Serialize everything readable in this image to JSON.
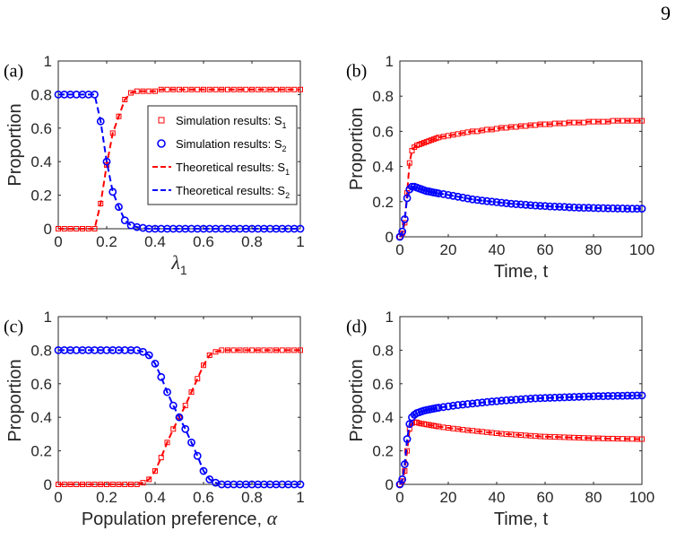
{
  "page_number": "9",
  "legend": [
    {
      "label": "Simulation results: S",
      "sub": "1"
    },
    {
      "label": "Simulation results: S",
      "sub": "2"
    },
    {
      "label": "Theoretical results: S",
      "sub": "1"
    },
    {
      "label": "Theoretical results: S",
      "sub": "2"
    }
  ],
  "colors": {
    "s1": "#ff0000",
    "s2": "#0000ff"
  },
  "chart_data": [
    {
      "panel_label": "(a)",
      "type": "line+scatter",
      "ylabel": "Proportion",
      "xlabel": "λ",
      "xlabel_sub": "1",
      "xlim": [
        0,
        1
      ],
      "ylim": [
        0,
        1
      ],
      "xticks": [
        "0",
        "0.2",
        "0.4",
        "0.6",
        "0.8",
        "1"
      ],
      "yticks": [
        "0",
        "0.2",
        "0.4",
        "0.6",
        "0.8",
        "1"
      ],
      "legend_position": "center-right",
      "x": [
        0,
        0.025,
        0.05,
        0.075,
        0.1,
        0.125,
        0.15,
        0.175,
        0.2,
        0.225,
        0.25,
        0.275,
        0.3,
        0.325,
        0.35,
        0.375,
        0.4,
        0.425,
        0.45,
        0.475,
        0.5,
        0.525,
        0.55,
        0.575,
        0.6,
        0.625,
        0.65,
        0.675,
        0.7,
        0.725,
        0.75,
        0.775,
        0.8,
        0.825,
        0.85,
        0.875,
        0.9,
        0.925,
        0.95,
        0.975,
        1.0
      ],
      "series": [
        {
          "key": "s1",
          "marker": "square",
          "values": [
            0,
            0,
            0,
            0,
            0,
            0,
            0,
            0.15,
            0.38,
            0.57,
            0.67,
            0.77,
            0.81,
            0.82,
            0.82,
            0.82,
            0.82,
            0.83,
            0.83,
            0.83,
            0.83,
            0.83,
            0.83,
            0.83,
            0.83,
            0.83,
            0.83,
            0.83,
            0.83,
            0.83,
            0.83,
            0.83,
            0.83,
            0.83,
            0.83,
            0.83,
            0.83,
            0.83,
            0.83,
            0.83,
            0.83
          ]
        },
        {
          "key": "s2",
          "marker": "circle",
          "values": [
            0.8,
            0.8,
            0.8,
            0.8,
            0.8,
            0.8,
            0.8,
            0.64,
            0.4,
            0.22,
            0.13,
            0.05,
            0.02,
            0.01,
            0.005,
            0,
            0,
            0,
            0,
            0,
            0,
            0,
            0,
            0,
            0,
            0,
            0,
            0,
            0,
            0,
            0,
            0,
            0,
            0,
            0,
            0,
            0,
            0,
            0,
            0,
            0
          ]
        }
      ]
    },
    {
      "panel_label": "(b)",
      "type": "line+scatter",
      "ylabel": "Proportion",
      "xlabel": "Time, t",
      "xlim": [
        0,
        100
      ],
      "ylim": [
        0,
        1
      ],
      "xticks": [
        "0",
        "20",
        "40",
        "60",
        "80",
        "100"
      ],
      "yticks": [
        "0",
        "0.2",
        "0.4",
        "0.6",
        "0.8",
        "1"
      ],
      "x": [
        0,
        1,
        2,
        3,
        4,
        5,
        6,
        7,
        8,
        9,
        10,
        11,
        12,
        13,
        14,
        15,
        16,
        18,
        20,
        22,
        24,
        26,
        28,
        30,
        32,
        34,
        36,
        38,
        40,
        42,
        44,
        46,
        48,
        50,
        52,
        54,
        56,
        58,
        60,
        62,
        64,
        66,
        68,
        70,
        72,
        74,
        76,
        78,
        80,
        82,
        84,
        86,
        88,
        90,
        92,
        94,
        96,
        98,
        100
      ],
      "series": [
        {
          "key": "s1",
          "marker": "square",
          "values": [
            0,
            0.02,
            0.08,
            0.25,
            0.42,
            0.49,
            0.51,
            0.52,
            0.525,
            0.53,
            0.535,
            0.54,
            0.545,
            0.55,
            0.555,
            0.56,
            0.565,
            0.57,
            0.575,
            0.58,
            0.585,
            0.59,
            0.595,
            0.6,
            0.6,
            0.605,
            0.61,
            0.61,
            0.615,
            0.62,
            0.62,
            0.625,
            0.625,
            0.63,
            0.63,
            0.635,
            0.635,
            0.64,
            0.64,
            0.64,
            0.645,
            0.645,
            0.645,
            0.65,
            0.65,
            0.65,
            0.65,
            0.655,
            0.655,
            0.655,
            0.655,
            0.655,
            0.66,
            0.66,
            0.66,
            0.66,
            0.66,
            0.66,
            0.66
          ]
        },
        {
          "key": "s2",
          "marker": "circle",
          "values": [
            0,
            0.03,
            0.1,
            0.22,
            0.27,
            0.285,
            0.285,
            0.28,
            0.275,
            0.27,
            0.265,
            0.26,
            0.258,
            0.255,
            0.252,
            0.25,
            0.247,
            0.243,
            0.238,
            0.233,
            0.228,
            0.223,
            0.218,
            0.213,
            0.21,
            0.206,
            0.203,
            0.2,
            0.197,
            0.194,
            0.191,
            0.188,
            0.186,
            0.184,
            0.182,
            0.18,
            0.178,
            0.176,
            0.175,
            0.173,
            0.172,
            0.171,
            0.17,
            0.168,
            0.167,
            0.166,
            0.165,
            0.165,
            0.164,
            0.163,
            0.163,
            0.162,
            0.162,
            0.161,
            0.161,
            0.16,
            0.16,
            0.16,
            0.16
          ]
        }
      ]
    },
    {
      "panel_label": "(c)",
      "type": "line+scatter",
      "ylabel": "Proportion",
      "xlabel": "Population preference, α",
      "xlim": [
        0,
        1
      ],
      "ylim": [
        0,
        1
      ],
      "xticks": [
        "0",
        "0.2",
        "0.4",
        "0.6",
        "0.8",
        "1"
      ],
      "yticks": [
        "0",
        "0.2",
        "0.4",
        "0.6",
        "0.8",
        "1"
      ],
      "x": [
        0,
        0.025,
        0.05,
        0.075,
        0.1,
        0.125,
        0.15,
        0.175,
        0.2,
        0.225,
        0.25,
        0.275,
        0.3,
        0.325,
        0.35,
        0.375,
        0.4,
        0.425,
        0.45,
        0.475,
        0.5,
        0.525,
        0.55,
        0.575,
        0.6,
        0.625,
        0.65,
        0.675,
        0.7,
        0.725,
        0.75,
        0.775,
        0.8,
        0.825,
        0.85,
        0.875,
        0.9,
        0.925,
        0.95,
        0.975,
        1.0
      ],
      "series": [
        {
          "key": "s1",
          "marker": "square",
          "values": [
            0,
            0,
            0,
            0,
            0,
            0,
            0,
            0,
            0,
            0,
            0,
            0,
            0,
            0,
            0.01,
            0.03,
            0.08,
            0.16,
            0.25,
            0.33,
            0.4,
            0.47,
            0.55,
            0.63,
            0.71,
            0.77,
            0.79,
            0.8,
            0.8,
            0.8,
            0.8,
            0.8,
            0.8,
            0.8,
            0.8,
            0.8,
            0.8,
            0.8,
            0.8,
            0.8,
            0.8
          ]
        },
        {
          "key": "s2",
          "marker": "circle",
          "values": [
            0.8,
            0.8,
            0.8,
            0.8,
            0.8,
            0.8,
            0.8,
            0.8,
            0.8,
            0.8,
            0.8,
            0.8,
            0.8,
            0.8,
            0.79,
            0.77,
            0.72,
            0.64,
            0.55,
            0.47,
            0.4,
            0.33,
            0.25,
            0.17,
            0.08,
            0.03,
            0.01,
            0,
            0,
            0,
            0,
            0,
            0,
            0,
            0,
            0,
            0,
            0,
            0,
            0,
            0
          ]
        }
      ]
    },
    {
      "panel_label": "(d)",
      "type": "line+scatter",
      "ylabel": "Proportion",
      "xlabel": "Time, t",
      "xlim": [
        0,
        100
      ],
      "ylim": [
        0,
        1
      ],
      "xticks": [
        "0",
        "20",
        "40",
        "60",
        "80",
        "100"
      ],
      "yticks": [
        "0",
        "0.2",
        "0.4",
        "0.6",
        "0.8",
        "1"
      ],
      "x": [
        0,
        1,
        2,
        3,
        4,
        5,
        6,
        7,
        8,
        9,
        10,
        11,
        12,
        13,
        14,
        15,
        16,
        18,
        20,
        22,
        24,
        26,
        28,
        30,
        32,
        34,
        36,
        38,
        40,
        42,
        44,
        46,
        48,
        50,
        52,
        54,
        56,
        58,
        60,
        62,
        64,
        66,
        68,
        70,
        72,
        74,
        76,
        78,
        80,
        82,
        84,
        86,
        88,
        90,
        92,
        94,
        96,
        98,
        100
      ],
      "series": [
        {
          "key": "s1",
          "marker": "square",
          "values": [
            0,
            0.02,
            0.08,
            0.2,
            0.33,
            0.365,
            0.37,
            0.37,
            0.365,
            0.362,
            0.36,
            0.357,
            0.355,
            0.352,
            0.35,
            0.347,
            0.345,
            0.34,
            0.337,
            0.333,
            0.33,
            0.326,
            0.323,
            0.32,
            0.317,
            0.314,
            0.311,
            0.308,
            0.305,
            0.302,
            0.3,
            0.298,
            0.296,
            0.294,
            0.292,
            0.29,
            0.288,
            0.286,
            0.285,
            0.284,
            0.283,
            0.282,
            0.281,
            0.28,
            0.279,
            0.278,
            0.277,
            0.276,
            0.275,
            0.275,
            0.274,
            0.273,
            0.273,
            0.272,
            0.272,
            0.271,
            0.271,
            0.27,
            0.27
          ]
        },
        {
          "key": "s2",
          "marker": "circle",
          "values": [
            0,
            0.03,
            0.12,
            0.27,
            0.36,
            0.4,
            0.415,
            0.425,
            0.43,
            0.435,
            0.44,
            0.443,
            0.446,
            0.449,
            0.452,
            0.455,
            0.457,
            0.461,
            0.465,
            0.469,
            0.473,
            0.476,
            0.479,
            0.482,
            0.485,
            0.488,
            0.491,
            0.494,
            0.496,
            0.499,
            0.501,
            0.503,
            0.505,
            0.507,
            0.509,
            0.511,
            0.513,
            0.514,
            0.515,
            0.516,
            0.517,
            0.518,
            0.519,
            0.52,
            0.521,
            0.522,
            0.523,
            0.524,
            0.525,
            0.526,
            0.526,
            0.527,
            0.527,
            0.528,
            0.528,
            0.529,
            0.529,
            0.53,
            0.53
          ]
        }
      ]
    }
  ]
}
